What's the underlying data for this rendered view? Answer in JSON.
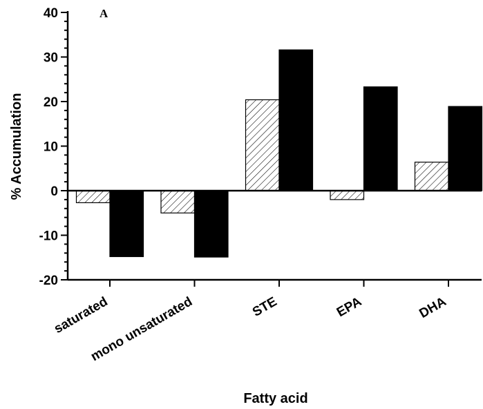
{
  "chart_data": {
    "type": "bar",
    "panel_label": "A",
    "xlabel": "Fatty acid",
    "ylabel": "% Accumulation",
    "categories": [
      "saturated",
      "mono unsaturated",
      "STE",
      "EPA",
      "DHA"
    ],
    "series": [
      {
        "values": [
          -2.7,
          -5.0,
          20.4,
          -2.0,
          6.4
        ],
        "style": "hatched",
        "color": "#000000"
      },
      {
        "values": [
          -14.8,
          -14.9,
          31.6,
          23.3,
          18.9
        ],
        "style": "solid",
        "color": "#000000"
      }
    ],
    "ylim": [
      -20,
      40
    ],
    "yticks": [
      -20,
      -10,
      0,
      10,
      20,
      30,
      40
    ],
    "yminor_step": 2,
    "grid": false,
    "legend": "none"
  }
}
